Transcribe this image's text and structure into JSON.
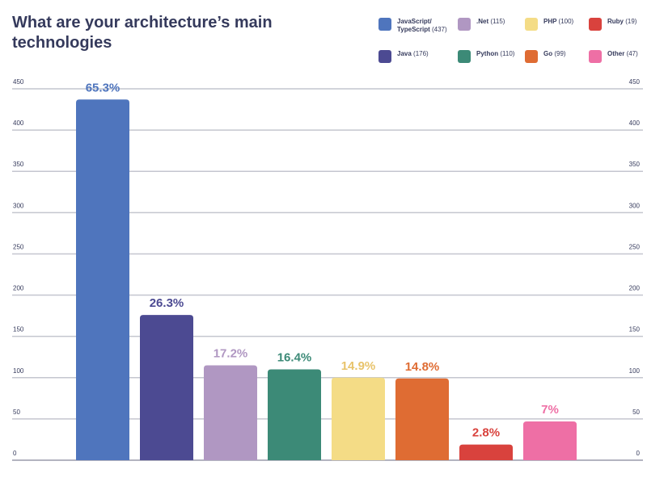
{
  "title": "What are your architecture’s main technologies",
  "chart_data": {
    "type": "bar",
    "title": "What are your architecture’s main technologies",
    "categories": [
      "JavaScript/ TypeScript",
      "Java",
      ".Net",
      "Python",
      "PHP",
      "Go",
      "Ruby",
      "Other"
    ],
    "values": [
      437,
      176,
      115,
      110,
      100,
      99,
      19,
      47
    ],
    "labels": [
      "65.3%",
      "26.3%",
      "17.2%",
      "16.4%",
      "14.9%",
      "14.8%",
      "2.8%",
      "7%"
    ],
    "colors": [
      "#4f75bd",
      "#4c4a92",
      "#b097c2",
      "#3c8a77",
      "#f4dc86",
      "#df6c33",
      "#d9423d",
      "#ee6fa5"
    ],
    "label_colors": [
      "#4f75bd",
      "#4c4a92",
      "#b097c2",
      "#3c8a77",
      "#e8c36a",
      "#df6c33",
      "#d9423d",
      "#ee6fa5"
    ],
    "ylim": [
      0,
      450
    ],
    "yticks": [
      "0",
      "50",
      "100",
      "150",
      "200",
      "250",
      "300",
      "350",
      "400",
      "450"
    ],
    "grid": true,
    "legend_position": "top-right",
    "legend": [
      {
        "name": "JavaScript/\nTypeScript",
        "count": "(437)",
        "color": "#4f75bd"
      },
      {
        "name": ".Net",
        "count": "(115)",
        "color": "#b097c2"
      },
      {
        "name": "PHP",
        "count": "(100)",
        "color": "#f4dc86"
      },
      {
        "name": "Ruby",
        "count": "(19)",
        "color": "#d9423d"
      },
      {
        "name": "Java",
        "count": "(176)",
        "color": "#4c4a92"
      },
      {
        "name": "Python",
        "count": "(110)",
        "color": "#3c8a77"
      },
      {
        "name": "Go",
        "count": "(99)",
        "color": "#df6c33"
      },
      {
        "name": "Other",
        "count": "(47)",
        "color": "#ee6fa5"
      }
    ]
  }
}
